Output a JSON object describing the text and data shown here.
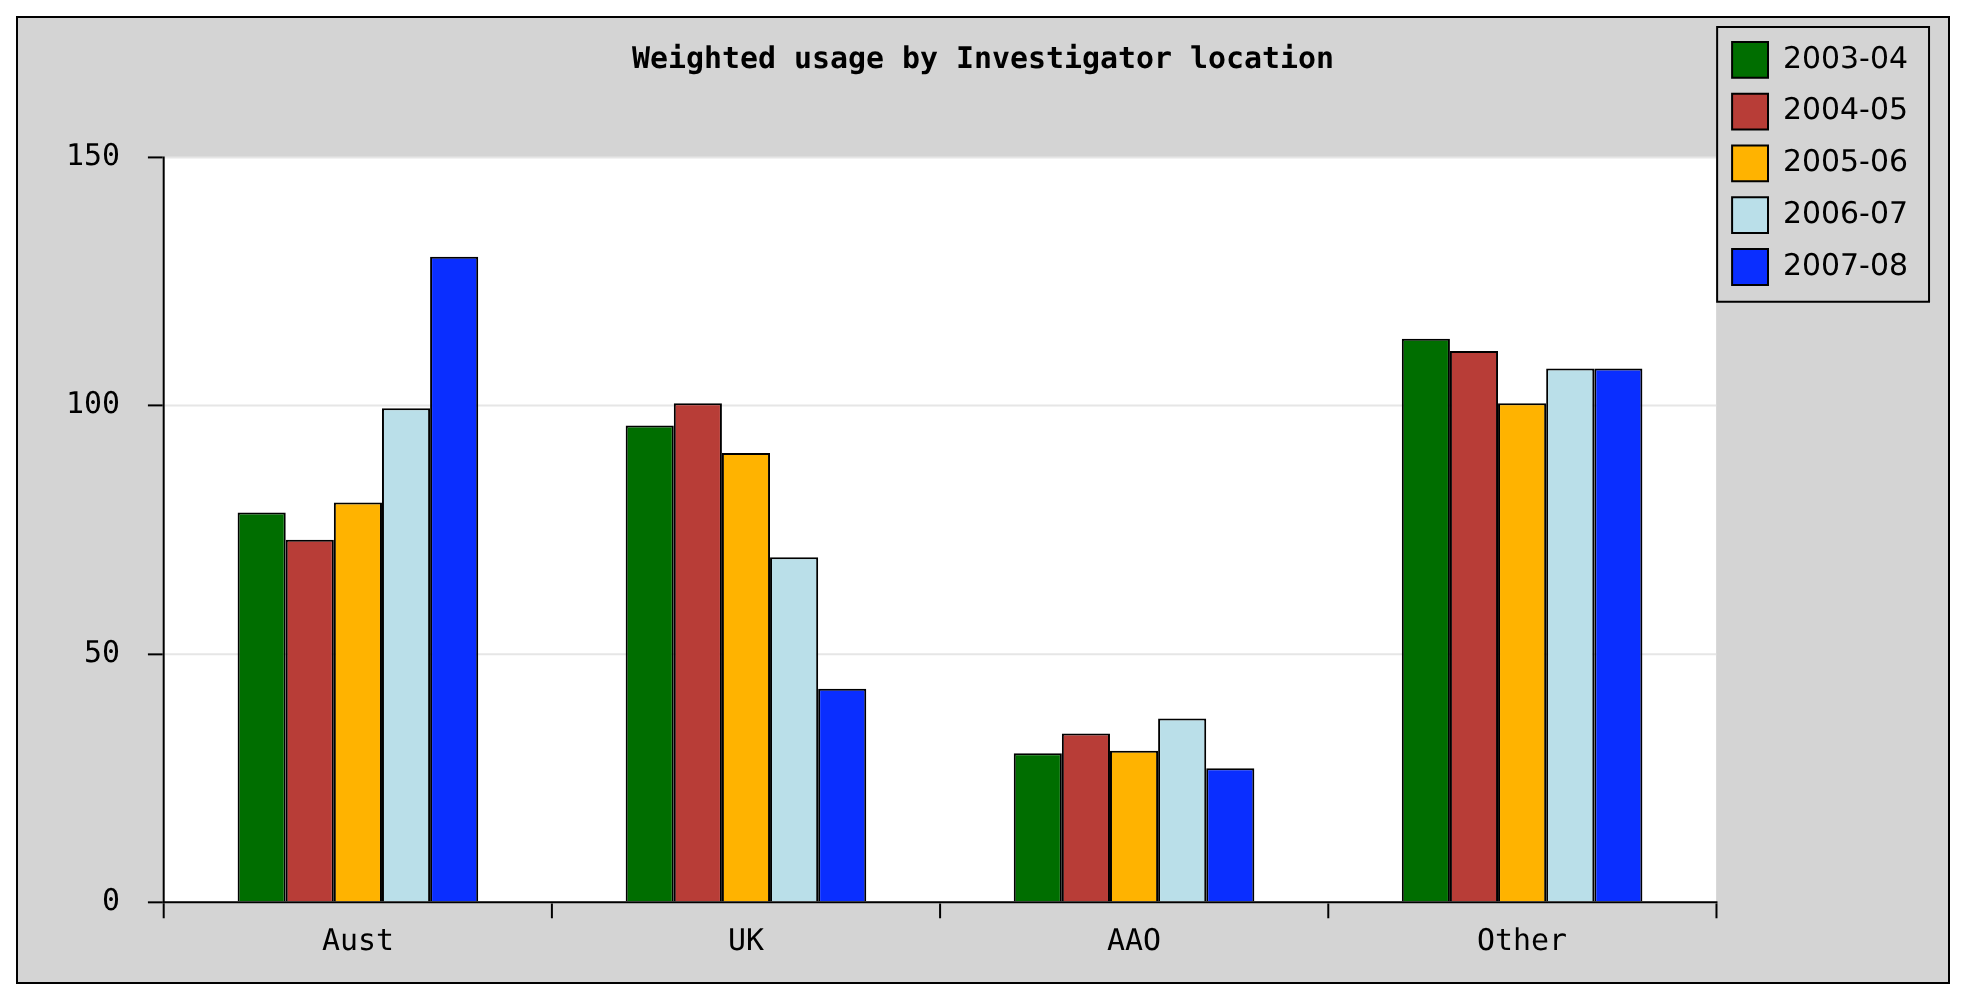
{
  "chart_data": {
    "type": "bar",
    "title": "Weighted usage by Investigator location",
    "categories": [
      "Aust",
      "UK",
      "AAO",
      "Other"
    ],
    "series": [
      {
        "name": "2003-04",
        "color": "#006e00",
        "values": [
          78.5,
          96,
          30,
          113.5
        ]
      },
      {
        "name": "2004-05",
        "color": "#b83d37",
        "values": [
          73,
          100.5,
          34,
          111
        ]
      },
      {
        "name": "2005-06",
        "color": "#ffb300",
        "values": [
          80.5,
          90.5,
          30.5,
          100.5
        ]
      },
      {
        "name": "2006-07",
        "color": "#badfe9",
        "values": [
          99.5,
          69.5,
          37,
          107.5
        ]
      },
      {
        "name": "2007-08",
        "color": "#0a2eff",
        "values": [
          130,
          43,
          27,
          107.5
        ]
      }
    ],
    "ylim": [
      0,
      150
    ],
    "yticks": [
      0,
      50,
      100,
      150
    ],
    "grid": "y",
    "legend": "top right"
  }
}
